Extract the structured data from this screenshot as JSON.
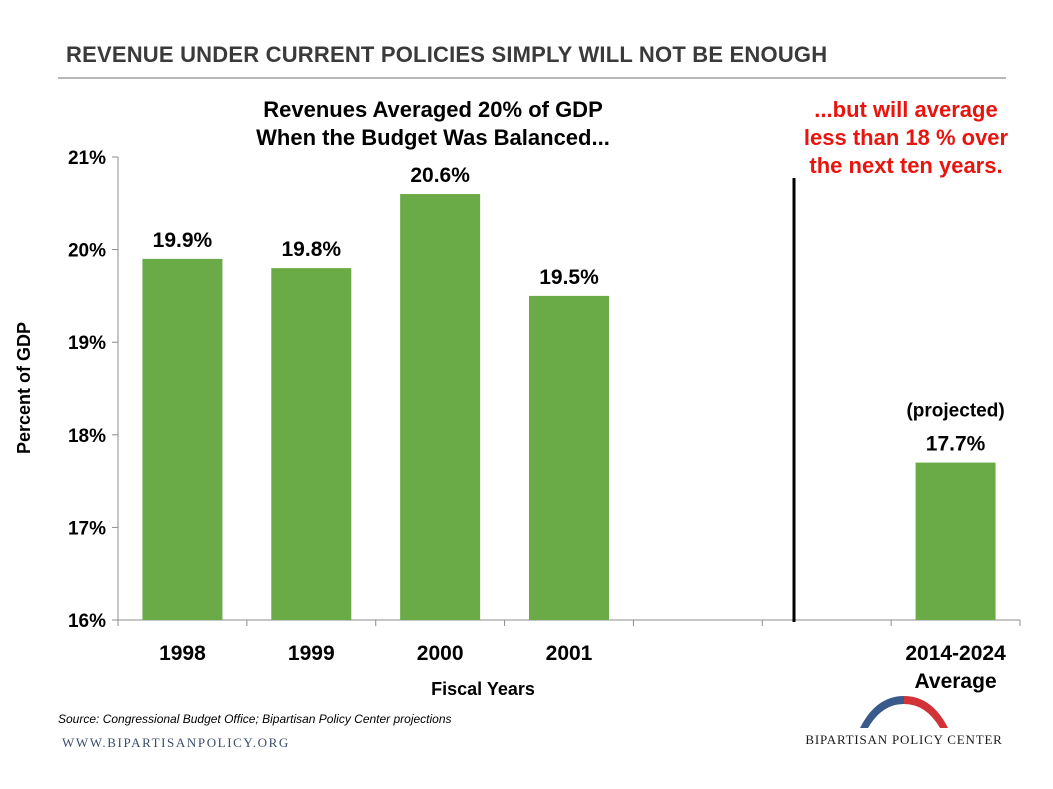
{
  "header": {
    "title": "REVENUE UNDER CURRENT POLICIES SIMPLY WILL NOT BE ENOUGH"
  },
  "annotations": {
    "left": [
      "Revenues Averaged 20% of GDP",
      "When the Budget Was Balanced..."
    ],
    "right": [
      "...but will average",
      "less than 18 % over",
      "the next ten years."
    ],
    "projected": "(projected)"
  },
  "colors": {
    "bar": "#6aab47",
    "annotation_right": "#e8150e",
    "divider": "#000000",
    "logo_blue": "#3b5a8c",
    "logo_red": "#d23339"
  },
  "chart_data": {
    "type": "bar",
    "title": "",
    "xlabel": "Fiscal Years",
    "ylabel": "Percent of GDP",
    "ylim": [
      16,
      21
    ],
    "y_ticks": [
      "16%",
      "17%",
      "18%",
      "19%",
      "20%",
      "21%"
    ],
    "y_tick_values": [
      16,
      17,
      18,
      19,
      20,
      21
    ],
    "categories": [
      [
        "1998"
      ],
      [
        "1999"
      ],
      [
        "2000"
      ],
      [
        "2001"
      ],
      [
        ""
      ],
      [
        ""
      ],
      [
        "2014-2024",
        "Average"
      ]
    ],
    "values": [
      19.9,
      19.8,
      20.6,
      19.5,
      null,
      null,
      17.7
    ],
    "data_labels": [
      "19.9%",
      "19.8%",
      "20.6%",
      "19.5%",
      "",
      "",
      "17.7%"
    ],
    "grid": false,
    "legend": "none"
  },
  "footer": {
    "source": "Source: Congressional Budget Office; Bipartisan Policy Center projections",
    "website": "WWW.BIPARTISANPOLICY.ORG",
    "logo_text": "BIPARTISAN POLICY CENTER"
  }
}
